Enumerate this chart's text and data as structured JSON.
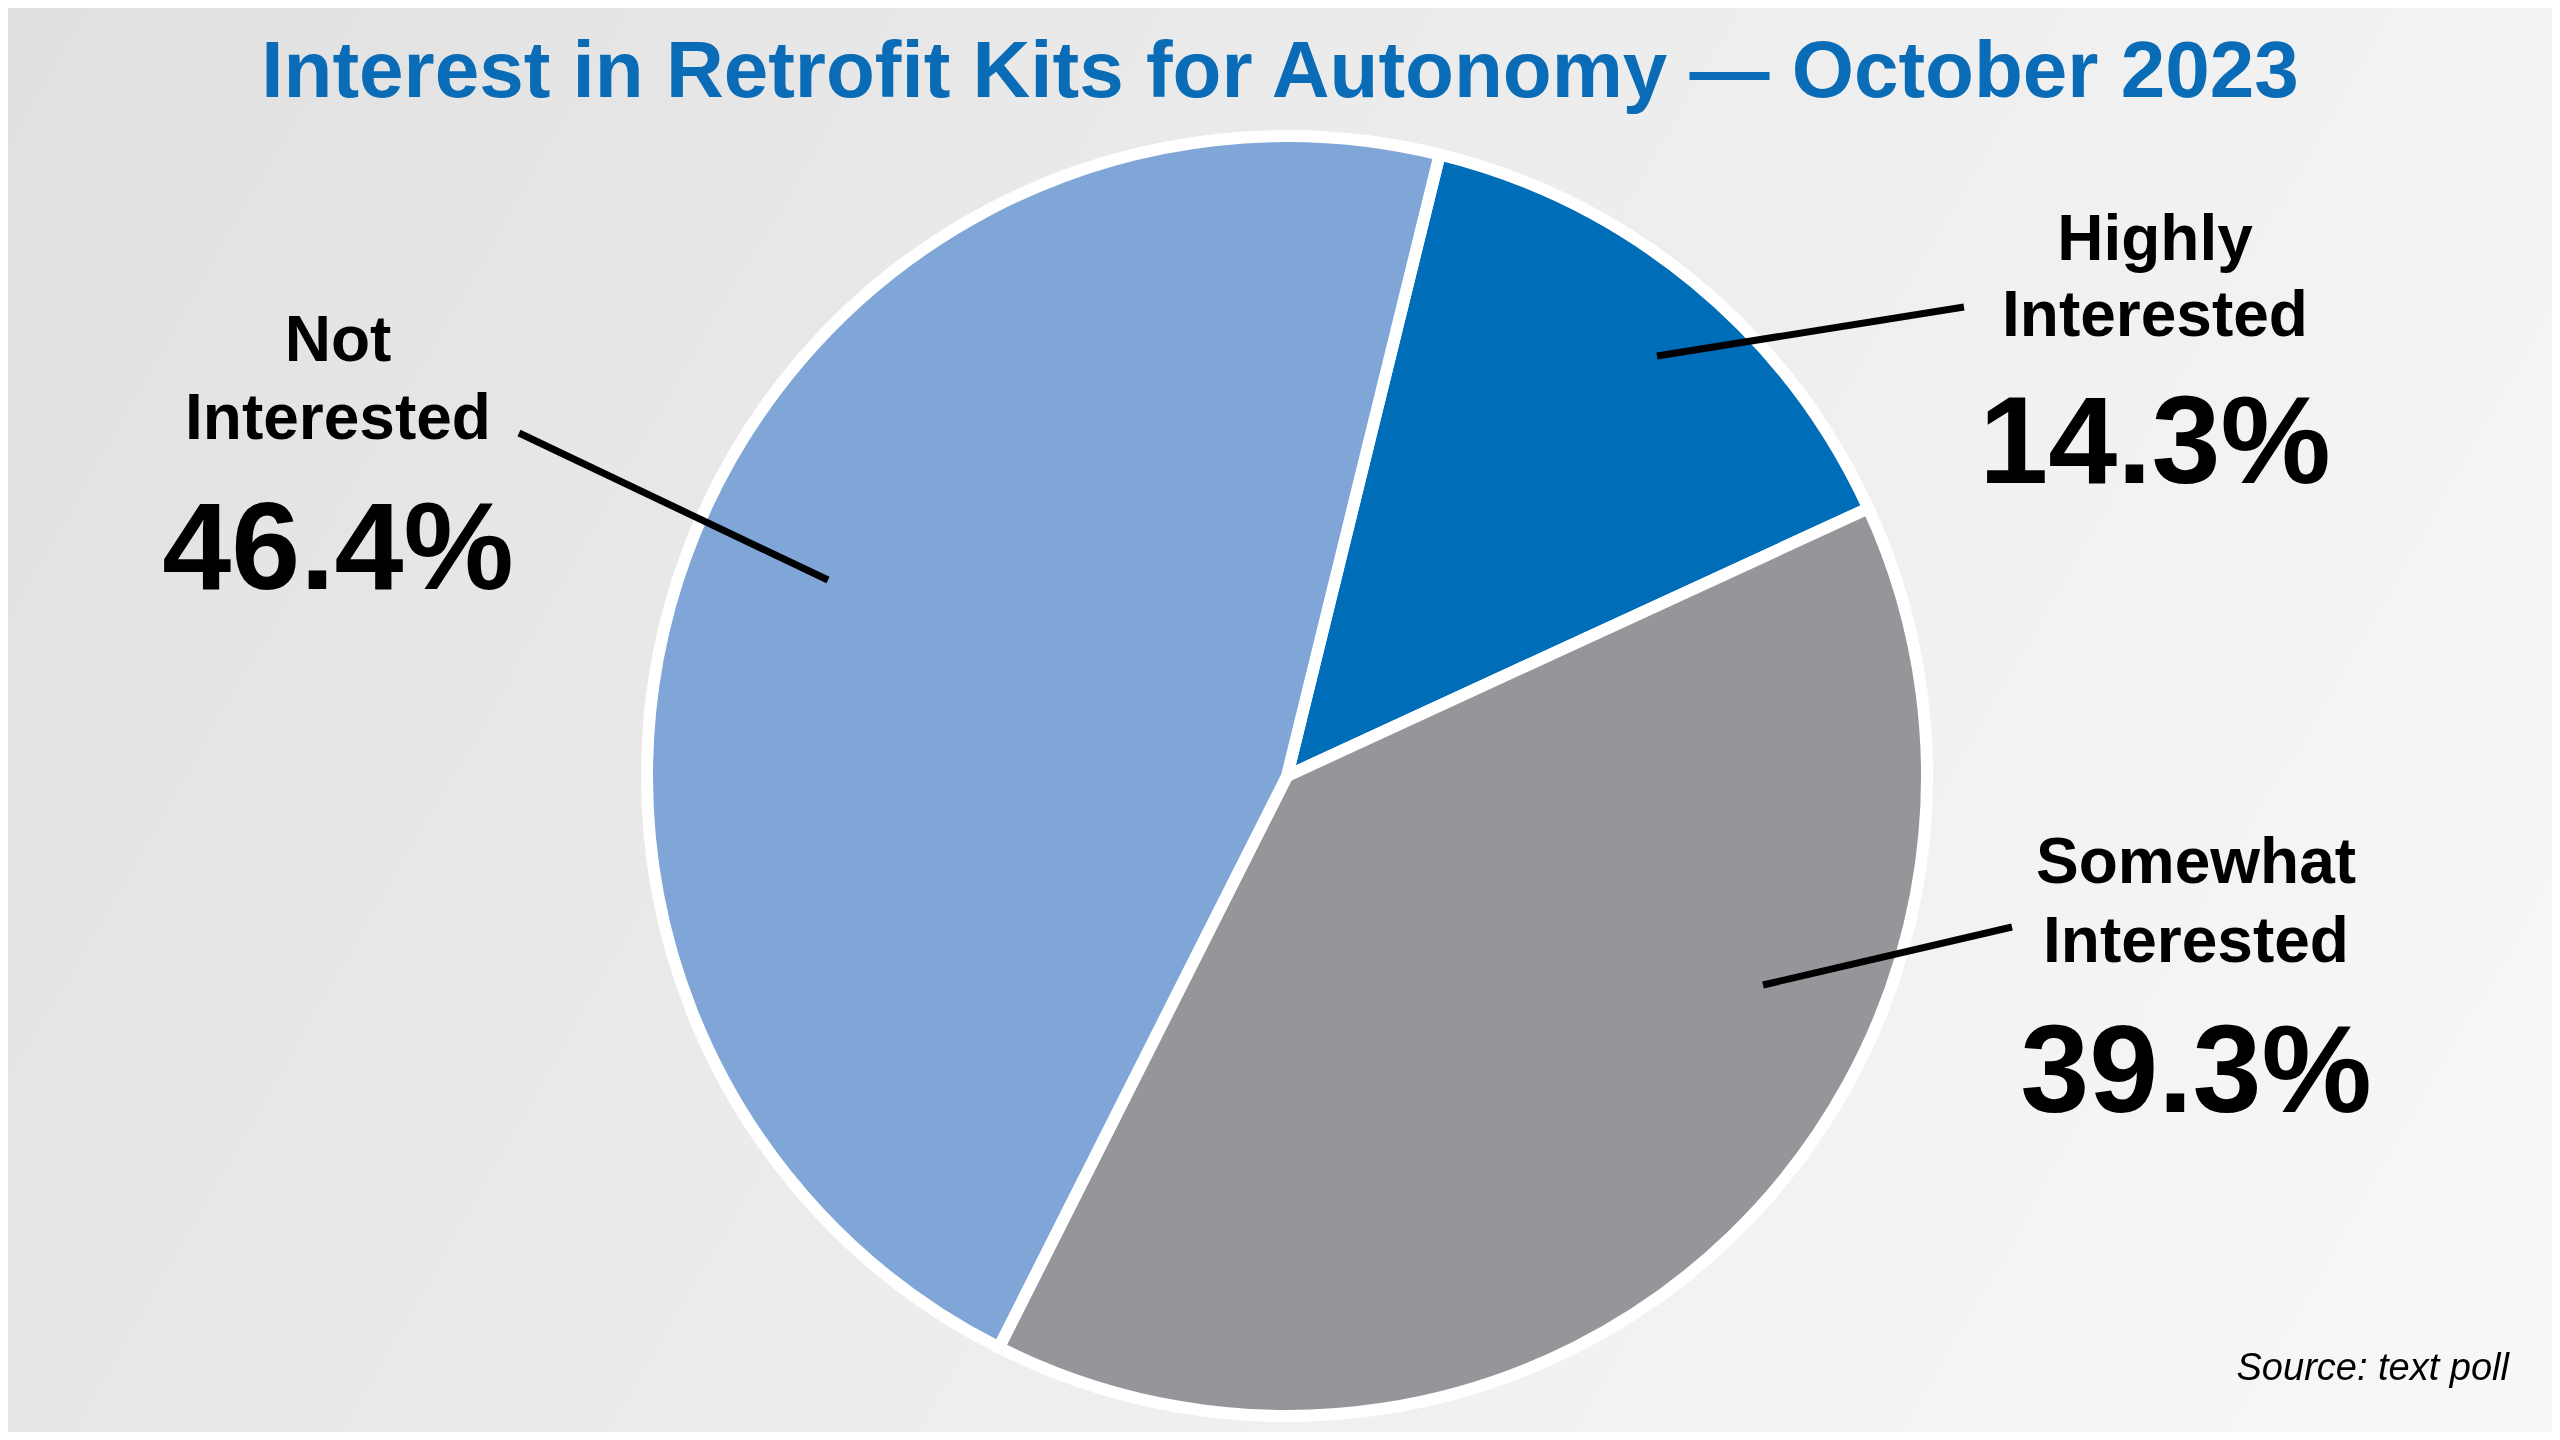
{
  "chart_data": {
    "type": "pie",
    "title": "Interest in Retrofit Kits for Autonomy — October 2023",
    "categories": [
      "Highly Interested",
      "Somewhat Interested",
      "Not Interested"
    ],
    "values": [
      14.3,
      39.3,
      46.4
    ],
    "colors": [
      "#006db8",
      "#95969a",
      "#7fa6d7"
    ],
    "value_labels": [
      "14.3%",
      "39.3%",
      "46.4%"
    ],
    "annotations": [
      "Source: text poll"
    ]
  }
}
